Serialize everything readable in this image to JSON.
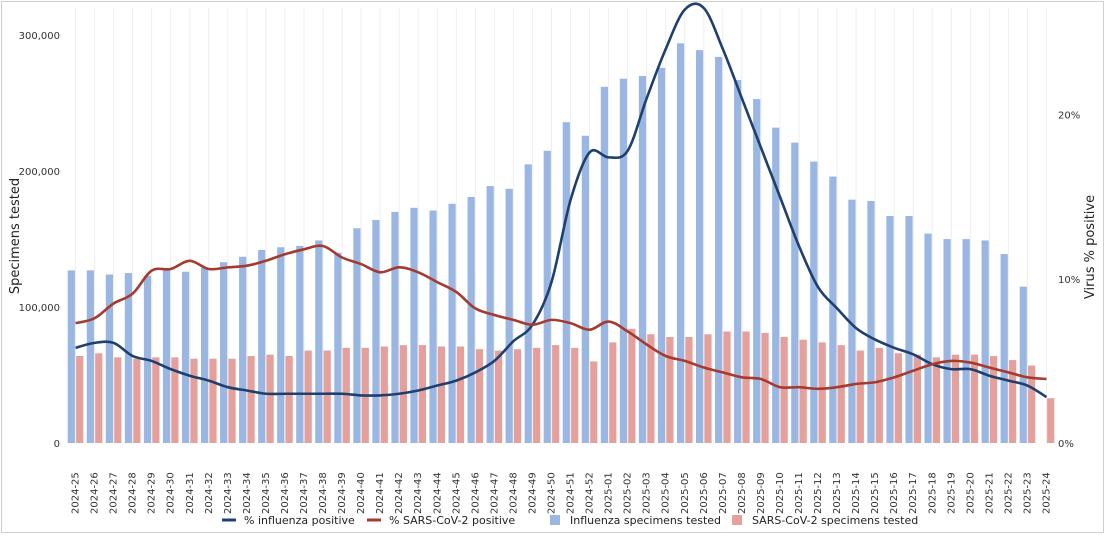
{
  "chart_data": {
    "type": "bar",
    "y_left_label": "Specimens tested",
    "y_right_label": "Virus % positive",
    "y_left_ticks": [
      "0",
      "100,000",
      "200,000",
      "300,000"
    ],
    "y_right_ticks": [
      "0%",
      "10%",
      "20%"
    ],
    "ylim_left": [
      0,
      320000
    ],
    "ylim_right": [
      0,
      26.5
    ],
    "grid": "vertical",
    "legend_position": "bottom",
    "categories": [
      "2024-25",
      "2024-26",
      "2024-27",
      "2024-28",
      "2024-29",
      "2024-30",
      "2024-31",
      "2024-32",
      "2024-33",
      "2024-34",
      "2024-35",
      "2024-36",
      "2024-37",
      "2024-38",
      "2024-39",
      "2024-40",
      "2024-41",
      "2024-42",
      "2024-43",
      "2024-44",
      "2024-45",
      "2024-46",
      "2024-47",
      "2024-48",
      "2024-49",
      "2024-50",
      "2024-51",
      "2024-52",
      "2025-01",
      "2025-02",
      "2025-03",
      "2025-04",
      "2025-05",
      "2025-06",
      "2025-07",
      "2025-08",
      "2025-09",
      "2025-10",
      "2025-11",
      "2025-12",
      "2025-13",
      "2025-14",
      "2025-15",
      "2025-16",
      "2025-17",
      "2025-18",
      "2025-19",
      "2025-20",
      "2025-21",
      "2025-22",
      "2025-23",
      "2025-24"
    ],
    "series": [
      {
        "name": "Influenza specimens tested",
        "kind": "bar",
        "axis": "left",
        "color": "#9ab7e3",
        "values": [
          127000,
          127000,
          124000,
          125000,
          123000,
          127000,
          126000,
          129000,
          133000,
          137000,
          142000,
          144000,
          145000,
          149000,
          140000,
          158000,
          164000,
          170000,
          173000,
          171000,
          176000,
          181000,
          189000,
          187000,
          205000,
          215000,
          236000,
          226000,
          262000,
          268000,
          270000,
          276000,
          294000,
          289000,
          284000,
          267000,
          253000,
          232000,
          221000,
          207000,
          196000,
          179000,
          178000,
          167000,
          167000,
          154000,
          150000,
          150000,
          149000,
          139000,
          115000,
          0
        ]
      },
      {
        "name": "SARS-CoV-2 specimens tested",
        "kind": "bar",
        "axis": "left",
        "color": "#e6a09c",
        "values": [
          64000,
          66000,
          63000,
          62000,
          63000,
          63000,
          62000,
          62000,
          62000,
          64000,
          65000,
          64000,
          68000,
          68000,
          70000,
          70000,
          71000,
          72000,
          72000,
          71000,
          71000,
          69000,
          68000,
          69000,
          70000,
          72000,
          70000,
          60000,
          74000,
          84000,
          80000,
          78000,
          78000,
          80000,
          82000,
          82000,
          81000,
          78000,
          76000,
          74000,
          72000,
          68000,
          70000,
          66000,
          65000,
          63000,
          65000,
          65000,
          64000,
          61000,
          57000,
          33000
        ]
      },
      {
        "name": "% influenza positive",
        "kind": "line",
        "axis": "right",
        "color": "#1f3f6e",
        "values": [
          5.8,
          6.1,
          6.1,
          5.3,
          5.0,
          4.5,
          4.1,
          3.8,
          3.4,
          3.2,
          3.0,
          3.0,
          3.0,
          3.0,
          3.0,
          2.9,
          2.9,
          3.0,
          3.2,
          3.5,
          3.8,
          4.3,
          5.0,
          6.2,
          7.2,
          9.8,
          14.8,
          17.7,
          17.4,
          17.8,
          21.0,
          24.0,
          26.4,
          26.5,
          24.0,
          21.0,
          18.0,
          15.0,
          12.0,
          9.5,
          8.2,
          7.0,
          6.3,
          5.8,
          5.4,
          4.8,
          4.5,
          4.5,
          4.1,
          3.8,
          3.5,
          2.8
        ]
      },
      {
        "name": "% SARS-CoV-2 positive",
        "kind": "line",
        "axis": "right",
        "color": "#a63a2f",
        "values": [
          7.3,
          7.6,
          8.5,
          9.1,
          10.5,
          10.6,
          11.1,
          10.6,
          10.7,
          10.8,
          11.1,
          11.5,
          11.8,
          12.0,
          11.3,
          10.9,
          10.4,
          10.7,
          10.4,
          9.8,
          9.2,
          8.2,
          7.8,
          7.5,
          7.2,
          7.5,
          7.3,
          6.9,
          7.4,
          6.8,
          6.0,
          5.3,
          5.0,
          4.6,
          4.3,
          4.0,
          3.9,
          3.4,
          3.4,
          3.3,
          3.4,
          3.6,
          3.7,
          4.0,
          4.4,
          4.8,
          5.0,
          4.9,
          4.6,
          4.3,
          4.0,
          3.9
        ]
      }
    ]
  }
}
